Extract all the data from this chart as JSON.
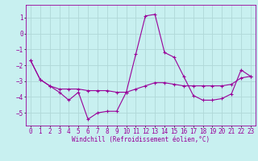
{
  "title": "",
  "xlabel": "Windchill (Refroidissement éolien,°C)",
  "ylabel": "",
  "bg_color": "#c8f0f0",
  "grid_color": "#b0d8d8",
  "line_color": "#990099",
  "xlim": [
    -0.5,
    23.5
  ],
  "ylim": [
    -5.8,
    1.8
  ],
  "yticks": [
    1,
    0,
    -1,
    -2,
    -3,
    -4,
    -5
  ],
  "xticks": [
    0,
    1,
    2,
    3,
    4,
    5,
    6,
    7,
    8,
    9,
    10,
    11,
    12,
    13,
    14,
    15,
    16,
    17,
    18,
    19,
    20,
    21,
    22,
    23
  ],
  "series1_x": [
    0,
    1,
    2,
    3,
    4,
    5,
    6,
    7,
    8,
    9,
    10,
    11,
    12,
    13,
    14,
    15,
    16,
    17,
    18,
    19,
    20,
    21,
    22,
    23
  ],
  "series1_y": [
    -1.7,
    -2.9,
    -3.3,
    -3.7,
    -4.2,
    -3.7,
    -5.4,
    -5.0,
    -4.9,
    -4.9,
    -3.7,
    -1.3,
    1.1,
    1.2,
    -1.2,
    -1.5,
    -2.7,
    -3.9,
    -4.2,
    -4.2,
    -4.1,
    -3.8,
    -2.3,
    -2.7
  ],
  "series2_x": [
    0,
    1,
    2,
    3,
    4,
    5,
    6,
    7,
    8,
    9,
    10,
    11,
    12,
    13,
    14,
    15,
    16,
    17,
    18,
    19,
    20,
    21,
    22,
    23
  ],
  "series2_y": [
    -1.7,
    -2.9,
    -3.3,
    -3.5,
    -3.5,
    -3.5,
    -3.6,
    -3.6,
    -3.6,
    -3.7,
    -3.7,
    -3.5,
    -3.3,
    -3.1,
    -3.1,
    -3.2,
    -3.3,
    -3.3,
    -3.3,
    -3.3,
    -3.3,
    -3.2,
    -2.8,
    -2.7
  ],
  "tick_fontsize": 5.5,
  "xlabel_fontsize": 5.5
}
